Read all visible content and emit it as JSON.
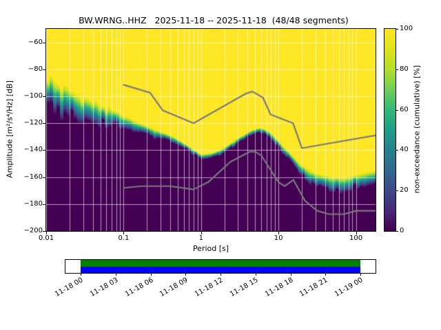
{
  "title": "BW.WRNG..HHZ   2025-11-18 -- 2025-11-18  (48/48 segments)",
  "axes": {
    "xlabel": "Period [s]",
    "ylabel": "Amplitude [m²/s⁴/Hz] [dB]",
    "x_ticks": [
      {
        "value": 0.01,
        "label": "0.01"
      },
      {
        "value": 0.1,
        "label": "0.1"
      },
      {
        "value": 1,
        "label": "1"
      },
      {
        "value": 10,
        "label": "10"
      },
      {
        "value": 100,
        "label": "100"
      }
    ],
    "y_ticks": [
      {
        "value": -60,
        "label": "−60"
      },
      {
        "value": -80,
        "label": "−80"
      },
      {
        "value": -100,
        "label": "−100"
      },
      {
        "value": -120,
        "label": "−120"
      },
      {
        "value": -140,
        "label": "−140"
      },
      {
        "value": -160,
        "label": "−160"
      },
      {
        "value": -180,
        "label": "−180"
      },
      {
        "value": -200,
        "label": "−200"
      }
    ]
  },
  "colorbar": {
    "label": "non-exceedance (cumulative) [%]",
    "ticks": [
      {
        "value": 0,
        "label": "0"
      },
      {
        "value": 20,
        "label": "20"
      },
      {
        "value": 40,
        "label": "40"
      },
      {
        "value": 60,
        "label": "60"
      },
      {
        "value": 80,
        "label": "80"
      },
      {
        "value": 100,
        "label": "100"
      }
    ]
  },
  "chart_data": {
    "type": "heatmap",
    "title": "BW.WRNG..HHZ   2025-11-18 -- 2025-11-18  (48/48 segments)",
    "x_axis": {
      "scale": "log",
      "range_s": [
        0.01,
        179
      ],
      "label": "Period [s]"
    },
    "y_axis": {
      "range_db": [
        -200,
        -50
      ],
      "label": "Amplitude [m²/s⁴/Hz] [dB]"
    },
    "z_axis": {
      "range_percent": [
        0,
        100
      ],
      "label": "non-exceedance (cumulative) [%]"
    },
    "grid": true,
    "grid_color": "#ffffff",
    "colormap": {
      "name": "viridis",
      "stops": [
        "#440154",
        "#482878",
        "#3e4989",
        "#31688e",
        "#26828e",
        "#1f9e89",
        "#35b779",
        "#6ece58",
        "#b5de2b",
        "#dfe318",
        "#fde725"
      ]
    },
    "psd_upper_boundary": {
      "note": "dB level at each period where cumulative non-exceedance reaches 100% (yellow edge)",
      "periods": [
        0.01,
        0.013,
        0.018,
        0.025,
        0.035,
        0.05,
        0.07,
        0.1,
        0.14,
        0.2,
        0.3,
        0.45,
        0.7,
        1.0,
        1.4,
        2.0,
        3.0,
        4.5,
        6.0,
        8.0,
        10,
        14,
        20,
        30,
        45,
        70,
        100,
        140,
        179
      ],
      "db": [
        -84,
        -89,
        -94,
        -98,
        -102,
        -106,
        -110,
        -114,
        -118,
        -122,
        -126,
        -130,
        -137,
        -143,
        -142,
        -138,
        -131,
        -125,
        -123,
        -127,
        -133,
        -142,
        -151,
        -157,
        -159,
        -160,
        -158,
        -156,
        -155
      ]
    },
    "psd_spread_db": {
      "note": "width in dB of transition from 100% down to 0%",
      "periods": [
        0.01,
        0.013,
        0.018,
        0.025,
        0.035,
        0.05,
        0.07,
        0.1,
        0.14,
        0.2,
        0.3,
        0.45,
        0.7,
        1.0,
        1.4,
        2.0,
        3.0,
        4.5,
        6.0,
        8.0,
        10,
        14,
        20,
        30,
        45,
        70,
        100,
        140,
        179
      ],
      "values": [
        22,
        21,
        20,
        18,
        16,
        14,
        12,
        9,
        8,
        7,
        6,
        5,
        4,
        4,
        4,
        4,
        4,
        4,
        4,
        4,
        5,
        6,
        8,
        10,
        11,
        11,
        10,
        9,
        9
      ]
    },
    "noise_models": {
      "color": "#7a7a7a",
      "nhnm": {
        "periods": [
          0.1,
          0.22,
          0.32,
          0.8,
          3.8,
          4.6,
          6.3,
          7.9,
          15.4,
          20.0,
          354.8
        ],
        "db": [
          -91.5,
          -97.4,
          -110.5,
          -120.0,
          -98.0,
          -96.5,
          -101.0,
          -113.5,
          -120.0,
          -138.5,
          -126.0
        ]
      },
      "nlnm": {
        "periods": [
          0.1,
          0.17,
          0.4,
          0.8,
          1.24,
          2.4,
          4.3,
          5.0,
          6.0,
          10.0,
          12.0,
          15.6,
          21.9,
          31.6,
          45.0,
          70.0,
          101.0,
          154.0,
          328.0
        ],
        "db": [
          -168.0,
          -166.7,
          -166.7,
          -169.2,
          -163.7,
          -148.6,
          -141.1,
          -141.1,
          -144.0,
          -163.7,
          -166.7,
          -162.1,
          -177.5,
          -185.0,
          -187.5,
          -187.5,
          -185.0,
          -185.0,
          -185.0
        ]
      }
    }
  },
  "timeline": {
    "tick_labels": [
      "11-18 00",
      "11-18 03",
      "11-18 06",
      "11-18 09",
      "11-18 12",
      "11-18 15",
      "11-18 18",
      "11-18 21",
      "11-19 00"
    ],
    "coverage_top_color": "#008000",
    "coverage_bottom_color": "#0000ff"
  }
}
